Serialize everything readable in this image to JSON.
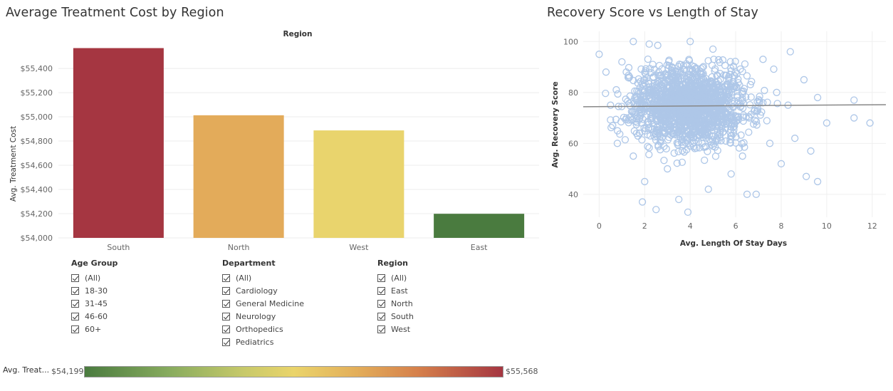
{
  "left_title": "Average Treatment Cost by Region",
  "right_title": "Recovery Score vs Length of Stay",
  "colors": {
    "South": "#a53641",
    "North": "#e3ab5a",
    "West": "#e9d46d",
    "East": "#4a7b3f",
    "scatter": "#aec7e8",
    "trend": "#888888"
  },
  "chart_data": [
    {
      "type": "bar",
      "title": "Average Treatment Cost by Region",
      "header": "Region",
      "categories": [
        "South",
        "North",
        "West",
        "East"
      ],
      "values": [
        55568,
        55013,
        54888,
        54199
      ],
      "ylabel": "Avg. Treatment Cost",
      "ylim": [
        54000,
        55630
      ],
      "yticks": [
        54000,
        54200,
        54400,
        54600,
        54800,
        55000,
        55200,
        55400
      ],
      "ytick_labels": [
        "$54,000",
        "$54,200",
        "$54,400",
        "$54,600",
        "$54,800",
        "$55,000",
        "$55,200",
        "$55,400"
      ],
      "grid": true
    },
    {
      "type": "scatter",
      "title": "Recovery Score vs Length of Stay",
      "xlabel": "Avg. Length Of Stay Days",
      "ylabel": "Avg. Recovery Score",
      "xlim": [
        -0.7,
        12.6
      ],
      "ylim": [
        31,
        104
      ],
      "xticks": [
        0,
        2,
        4,
        6,
        8,
        10,
        12
      ],
      "yticks": [
        40,
        60,
        80,
        100
      ],
      "trend_line": {
        "x": [
          -0.7,
          12.6
        ],
        "y": [
          74.4,
          75.2
        ]
      },
      "points": [
        [
          0,
          95
        ],
        [
          0.3,
          88
        ],
        [
          0.5,
          75
        ],
        [
          0.8,
          60
        ],
        [
          1,
          92
        ],
        [
          1.2,
          70
        ],
        [
          1.5,
          55
        ],
        [
          1.8,
          82
        ],
        [
          2,
          45
        ],
        [
          2.2,
          99
        ],
        [
          2.5,
          65
        ],
        [
          2.8,
          78
        ],
        [
          3,
          50
        ],
        [
          3.2,
          90
        ],
        [
          3.5,
          38
        ],
        [
          3.8,
          72
        ],
        [
          4,
          100
        ],
        [
          4.2,
          58
        ],
        [
          4.5,
          85
        ],
        [
          4.8,
          42
        ],
        [
          5,
          97
        ],
        [
          5.2,
          63
        ],
        [
          5.5,
          76
        ],
        [
          5.8,
          48
        ],
        [
          6,
          88
        ],
        [
          6.3,
          55
        ],
        [
          6.6,
          70
        ],
        [
          6.9,
          40
        ],
        [
          7.2,
          93
        ],
        [
          7.5,
          60
        ],
        [
          7.8,
          80
        ],
        [
          8,
          52
        ],
        [
          8.3,
          75
        ],
        [
          8.6,
          62
        ],
        [
          9,
          85
        ],
        [
          9.3,
          57
        ],
        [
          9.6,
          78
        ],
        [
          10,
          68
        ],
        [
          11.2,
          77
        ],
        [
          11.2,
          70
        ],
        [
          11.9,
          68
        ],
        [
          9.6,
          45
        ],
        [
          9.1,
          47
        ],
        [
          3.9,
          33
        ],
        [
          1.9,
          37
        ],
        [
          6.5,
          40
        ],
        [
          2.5,
          34
        ],
        [
          8.4,
          96
        ],
        [
          1.5,
          100
        ]
      ]
    }
  ],
  "filters": {
    "age_group": {
      "title": "Age Group",
      "items": [
        "(All)",
        "18-30",
        "31-45",
        "46-60",
        "60+"
      ]
    },
    "department": {
      "title": "Department",
      "items": [
        "(All)",
        "Cardiology",
        "General Medicine",
        "Neurology",
        "Orthopedics",
        "Pediatrics"
      ]
    },
    "region": {
      "title": "Region",
      "items": [
        "(All)",
        "East",
        "North",
        "South",
        "West"
      ]
    }
  },
  "legend": {
    "label": "Avg. Treat...",
    "min": "$54,199",
    "max": "$55,568"
  }
}
